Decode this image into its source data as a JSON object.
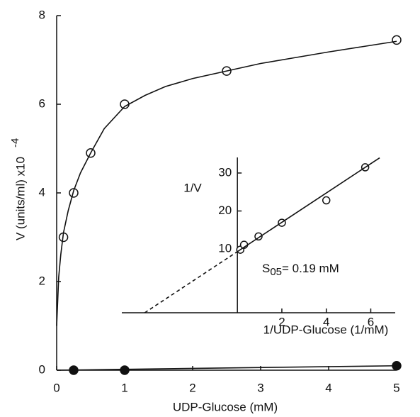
{
  "chart_data": [
    {
      "type": "scatter",
      "x_label": "UDP-Glucose  (mM)",
      "y_label": "V (units/ml) x10",
      "y_label_exponent": "-4",
      "xlim": [
        0,
        5
      ],
      "xticks": [
        0,
        1,
        2,
        3,
        4,
        5
      ],
      "ylim": [
        0,
        8
      ],
      "yticks": [
        0,
        2,
        4,
        6,
        8
      ],
      "series": [
        {
          "marker": "open",
          "color": "#111",
          "x": [
            0.1,
            0.25,
            0.5,
            1,
            2.5,
            5
          ],
          "values": [
            3.0,
            4.0,
            4.9,
            6.0,
            6.75,
            7.45
          ]
        },
        {
          "marker": "filled",
          "color": "#111",
          "x": [
            0.25,
            1,
            5
          ],
          "values": [
            0,
            0,
            0.1
          ]
        },
        {
          "marker": "line",
          "color": "#111",
          "x": [
            0,
            0.03,
            0.06,
            0.1,
            0.17,
            0.25,
            0.35,
            0.5,
            0.7,
            1,
            1.3,
            1.6,
            2,
            2.5,
            3,
            3.5,
            4,
            4.5,
            5
          ],
          "values": [
            1.0,
            2.1,
            2.6,
            3.1,
            3.6,
            4.05,
            4.45,
            4.9,
            5.45,
            5.95,
            6.2,
            6.4,
            6.58,
            6.75,
            6.92,
            7.05,
            7.18,
            7.3,
            7.42
          ]
        },
        {
          "marker": "line",
          "color": "#111",
          "x": [
            0,
            5
          ],
          "values": [
            0,
            0.1
          ]
        }
      ]
    },
    {
      "type": "scatter",
      "x_label": "1/UDP-Glucose (1/mM)",
      "y_label": "1/V",
      "annotation": "S",
      "annotation_sub": "05",
      "annotation_rest": "= 0.19 mM",
      "xlim": [
        -5.2,
        7.1
      ],
      "xticks": [
        2,
        4,
        6
      ],
      "ylim": [
        -6.8,
        34.1
      ],
      "yticks": [
        10,
        20,
        30
      ],
      "series": [
        {
          "marker": "open",
          "color": "#111",
          "x": [
            0.13,
            0.3,
            0.95,
            2,
            4,
            5.75
          ],
          "values": [
            9.8,
            11.1,
            13.3,
            16.9,
            22.8,
            31.5
          ]
        },
        {
          "marker": "line",
          "color": "#111",
          "x": [
            0,
            6.4
          ],
          "values": [
            9.3,
            34.0
          ]
        },
        {
          "marker": "dashed",
          "color": "#111",
          "x": [
            -4.17,
            0
          ],
          "values": [
            -6.8,
            9.3
          ]
        }
      ]
    }
  ]
}
